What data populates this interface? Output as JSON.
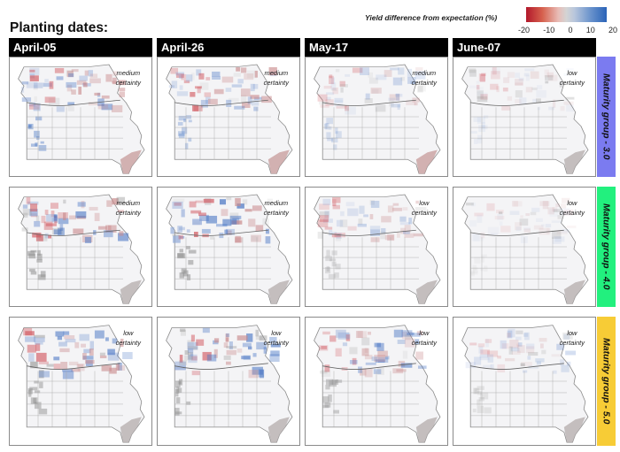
{
  "title": "Planting dates:",
  "legend": {
    "label": "Yield difference from expectation (%)",
    "ticks": [
      "-20",
      "-10",
      "0",
      "10",
      "20"
    ],
    "range": [
      -20,
      20
    ],
    "colors": {
      "low": "#b2182b",
      "mid": "#d4d4d4",
      "high": "#2a63b8"
    }
  },
  "columns": [
    {
      "label": "April-05"
    },
    {
      "label": "April-26"
    },
    {
      "label": "May-17"
    },
    {
      "label": "June-07"
    }
  ],
  "rows": [
    {
      "label": "Maturity group - 3.0",
      "color": "#7b7bf0",
      "certainty": [
        "medium certainty",
        "medium certainty",
        "medium certainty",
        "low certainty"
      ]
    },
    {
      "label": "Maturity group - 4.0",
      "color": "#22f07e",
      "certainty": [
        "medium certainty",
        "medium certainty",
        "low certainty",
        "low certainty"
      ]
    },
    {
      "label": "Maturity group - 5.0",
      "color": "#f7cc36",
      "certainty": [
        "low certainty",
        "low certainty",
        "low certainty",
        "low certainty"
      ]
    }
  ],
  "map_region": "Missouri counties"
}
